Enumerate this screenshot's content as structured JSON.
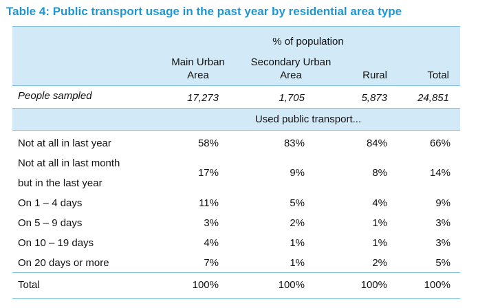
{
  "title": "Table 4: Public transport usage in the past year by residential area type",
  "header": {
    "group_label": "% of population",
    "columns": [
      {
        "line1": "Main Urban",
        "line2": "Area"
      },
      {
        "line1": "Secondary Urban",
        "line2": "Area"
      },
      {
        "line1": "",
        "line2": "Rural"
      },
      {
        "line1": "",
        "line2": "Total"
      }
    ]
  },
  "sampled": {
    "label": "People sampled",
    "values": [
      "17,273",
      "1,705",
      "5,873",
      "24,851"
    ]
  },
  "subheader": "Used public transport...",
  "rows": [
    {
      "label": "Not at all in last year",
      "values": [
        "58%",
        "83%",
        "84%",
        "66%"
      ]
    },
    {
      "label": "Not at all in last month",
      "label2": "but in the last year",
      "values": [
        "17%",
        "9%",
        "8%",
        "14%"
      ]
    },
    {
      "label": "On 1 – 4 days",
      "values": [
        "11%",
        "5%",
        "4%",
        "9%"
      ]
    },
    {
      "label": "On 5 – 9 days",
      "values": [
        "3%",
        "2%",
        "1%",
        "3%"
      ]
    },
    {
      "label": "On 10 – 19 days",
      "values": [
        "4%",
        "1%",
        "1%",
        "3%"
      ]
    },
    {
      "label": "On 20 days or more",
      "values": [
        "7%",
        "1%",
        "2%",
        "5%"
      ]
    }
  ],
  "total": {
    "label": "Total",
    "values": [
      "100%",
      "100%",
      "100%",
      "100%"
    ]
  },
  "colors": {
    "title": "#1f96d3",
    "band": "#d2e9f7",
    "rule": "#7cc3e6"
  }
}
